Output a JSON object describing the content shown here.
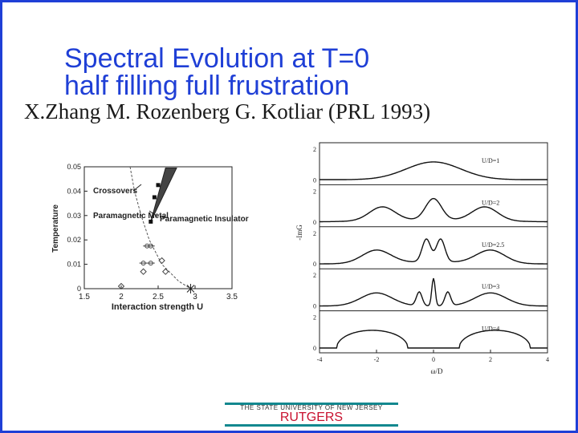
{
  "slide": {
    "title_line1": "Spectral Evolution at T=0",
    "title_line2": "half filling full frustration",
    "authors": "X.Zhang M. Rozenberg G. Kotliar (PRL 1993)",
    "footer_university": "THE STATE UNIVERSITY OF NEW JERSEY",
    "footer_name": "RUTGERS",
    "colors": {
      "title": "#1f3fd6",
      "border": "#1f3fd6",
      "footer_bar": "#13888f",
      "footer_name": "#c8102e"
    }
  },
  "chart_data": [
    {
      "type": "scatter",
      "xlabel": "Interaction strength U",
      "ylabel": "Temperature",
      "xlim": [
        1.5,
        3.5
      ],
      "ylim": [
        0,
        0.05
      ],
      "xticks": [
        "1.5",
        "2",
        "2.5",
        "3",
        "3.5"
      ],
      "yticks": [
        "0",
        "0.01",
        "0.02",
        "0.03",
        "0.04",
        "0.05"
      ],
      "annotations": [
        "Crossovers",
        "Paramagnetic Metal",
        "Paramagnetic Insulator"
      ],
      "series": [
        {
          "marker": "filled-square",
          "points": [
            [
              2.5,
              0.0425
            ],
            [
              2.45,
              0.0375
            ],
            [
              2.4,
              0.0275
            ]
          ]
        },
        {
          "marker": "open-diamond",
          "points": [
            [
              2.0,
              0.001
            ],
            [
              2.3,
              0.007
            ],
            [
              2.6,
              0.007
            ],
            [
              2.55,
              0.0115
            ]
          ]
        },
        {
          "marker": "circle-errorbar",
          "points": [
            [
              2.35,
              0.0175
            ],
            [
              2.4,
              0.0175
            ],
            [
              2.3,
              0.0105
            ],
            [
              2.4,
              0.0105
            ]
          ]
        },
        {
          "marker": "star",
          "points": [
            [
              2.94,
              0.0
            ]
          ]
        }
      ]
    },
    {
      "type": "line",
      "xlabel": "ω/D",
      "ylabel": "-ImG",
      "xlim": [
        -4,
        4
      ],
      "xticks": [
        "-4",
        "-2",
        "0",
        "2",
        "4"
      ],
      "panels": [
        {
          "label": "U/D=1",
          "yticks": [
            "0",
            "2"
          ]
        },
        {
          "label": "U/D=2",
          "yticks": [
            "0",
            "2"
          ]
        },
        {
          "label": "U/D=2.5",
          "yticks": [
            "0",
            "2"
          ]
        },
        {
          "label": "U/D=3",
          "yticks": [
            "0",
            "2"
          ]
        },
        {
          "label": "U/D=4",
          "yticks": [
            "0",
            "2"
          ]
        }
      ]
    }
  ]
}
